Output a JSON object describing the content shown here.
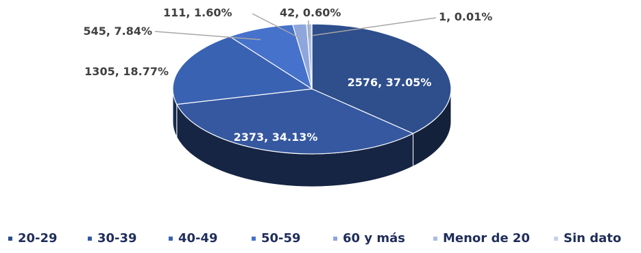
{
  "chart_data": {
    "type": "pie",
    "title": "",
    "series": [
      {
        "name": "20-29",
        "value": 2576,
        "label": "2576, 37.05%",
        "color": "#2e4e8c"
      },
      {
        "name": "30-39",
        "value": 2373,
        "label": "2373, 34.13%",
        "color": "#3558a0"
      },
      {
        "name": "40-49",
        "value": 1305,
        "label": "1305, 18.77%",
        "color": "#3a62b2"
      },
      {
        "name": "50-59",
        "value": 545,
        "label": "545, 7.84%",
        "color": "#4672cc"
      },
      {
        "name": "60 y más",
        "value": 111,
        "label": "111, 1.60%",
        "color": "#8ea6dc"
      },
      {
        "name": "Menor de 20",
        "value": 42,
        "label": "42, 0.60%",
        "color": "#a9bde6"
      },
      {
        "name": "Sin dato",
        "value": 1,
        "label": "1, 0.01%",
        "color": "#c3d1ee"
      }
    ],
    "legend_position": "bottom"
  }
}
